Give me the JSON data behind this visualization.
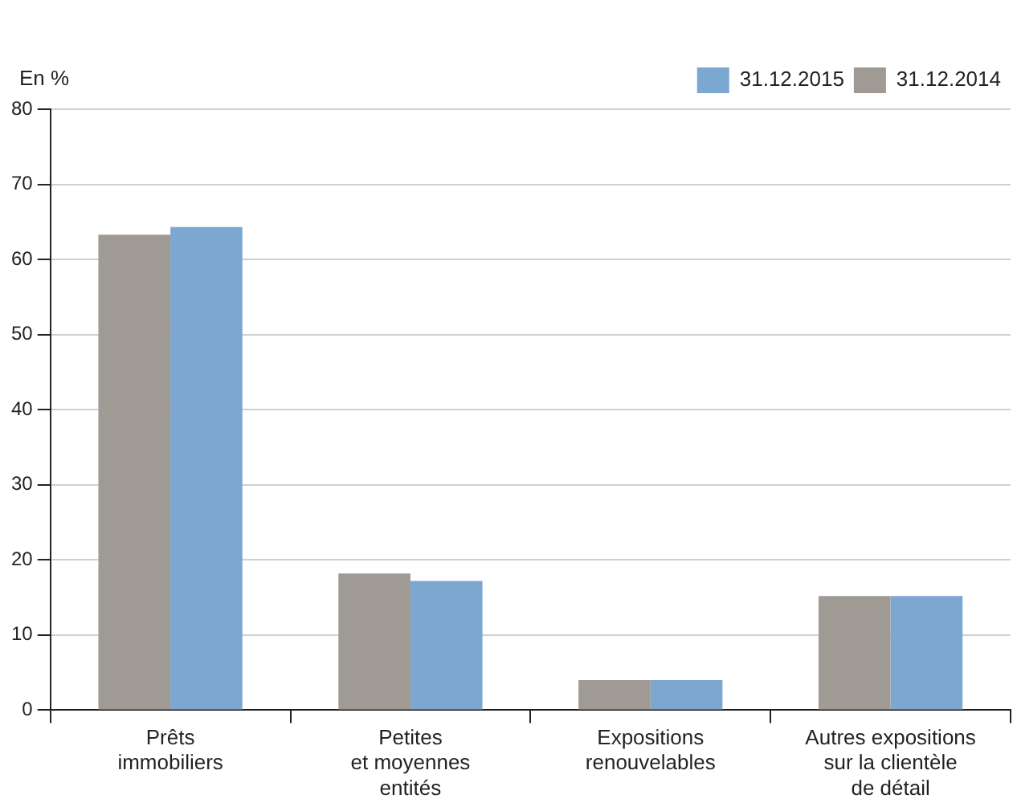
{
  "chart_data": {
    "type": "bar",
    "ylabel": "En %",
    "categories": [
      "Prêts\nimmobiliers",
      "Petites\net moyennes\nentités",
      "Expositions\nrenouvelables",
      "Autres expositions\nsur la clientèle\nde détail"
    ],
    "series": [
      {
        "name": "31.12.2014",
        "color": "#a09a95",
        "values": [
          63.3,
          18.2,
          4.0,
          15.2
        ]
      },
      {
        "name": "31.12.2015",
        "color": "#7ba7d0",
        "values": [
          64.3,
          17.2,
          4.0,
          15.2
        ]
      }
    ],
    "ylim": [
      0,
      80
    ],
    "yticks": [
      0,
      10,
      20,
      30,
      40,
      50,
      60,
      70,
      80
    ],
    "grid": "y",
    "legend": "top right"
  }
}
